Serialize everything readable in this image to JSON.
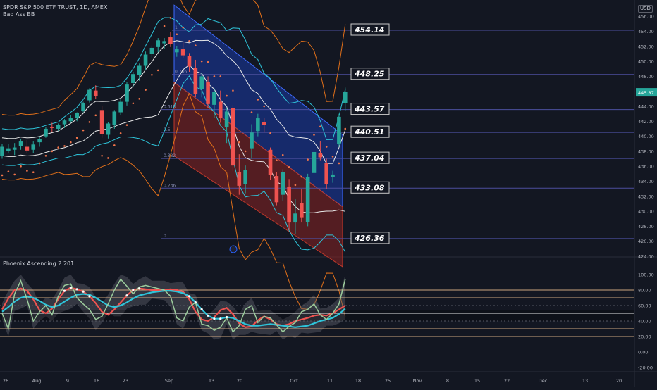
{
  "header": {
    "symbol_line": "SPDR S&P 500 ETF TRUST, 1D, AMEX",
    "indicator": "Bad Ass BB",
    "currency": "USD"
  },
  "oscillator": {
    "title": "Phoenix Ascending 2.201"
  },
  "colors": {
    "background": "#131722",
    "up": "#26a69a",
    "down": "#ef5350",
    "bb_outer": "#e1701a",
    "bb_mid": "#2ec4d9",
    "bb_basis": "#e8e8e8",
    "fib_line": "#4c4f9e",
    "psar": "#f0744a",
    "channel_upper": "#1a3aa8",
    "channel_lower": "#8b2323",
    "osc_band": "#5d606b",
    "osc_red": "#ef5350",
    "osc_cyan": "#2ec4d9",
    "osc_green": "#9ccc9c",
    "osc_level": "#e0b48a"
  },
  "chart_data": {
    "type": "candlestick",
    "title": "SPDR S&P 500 ETF TRUST, 1D, AMEX",
    "ylim": [
      424,
      456
    ],
    "y_ticks": [
      "424.00",
      "426.00",
      "428.00",
      "430.00",
      "432.00",
      "434.00",
      "436.00",
      "438.00",
      "440.00",
      "442.00",
      "444.00",
      "446.00",
      "448.00",
      "450.00",
      "452.00",
      "454.00",
      "456.00"
    ],
    "last_price": "445.87",
    "x_ticks": [
      "26",
      "Aug",
      "9",
      "16",
      "23",
      "Sep",
      "13",
      "20",
      "Oct",
      "11",
      "18",
      "25",
      "Nov",
      "8",
      "15",
      "22",
      "Dec",
      "13",
      "20"
    ],
    "candles": [
      [
        437.4,
        439.0,
        437.0,
        438.6
      ],
      [
        438.0,
        439.0,
        437.7,
        438.4
      ],
      [
        438.2,
        439.1,
        437.5,
        438.5
      ],
      [
        438.7,
        439.6,
        438.2,
        439.3
      ],
      [
        438.6,
        439.5,
        437.8,
        438.1
      ],
      [
        438.2,
        439.3,
        437.8,
        438.9
      ],
      [
        439.2,
        440.0,
        438.6,
        439.6
      ],
      [
        440.0,
        441.2,
        439.8,
        441.0
      ],
      [
        441.2,
        441.8,
        440.6,
        441.1
      ],
      [
        441.0,
        441.7,
        440.7,
        441.5
      ],
      [
        441.6,
        442.3,
        441.1,
        442.1
      ],
      [
        442.0,
        442.8,
        441.8,
        442.4
      ],
      [
        442.4,
        443.2,
        442.0,
        443.1
      ],
      [
        443.4,
        444.6,
        443.2,
        444.4
      ],
      [
        444.8,
        446.4,
        444.5,
        446.2
      ],
      [
        446.1,
        446.8,
        445.0,
        445.4
      ],
      [
        443.5,
        444.0,
        439.8,
        440.3
      ],
      [
        440.2,
        441.9,
        439.7,
        441.7
      ],
      [
        441.5,
        443.5,
        441.0,
        443.3
      ],
      [
        443.2,
        445.0,
        442.8,
        444.6
      ],
      [
        444.6,
        447.2,
        444.1,
        446.9
      ],
      [
        447.1,
        448.6,
        446.6,
        448.3
      ],
      [
        448.2,
        449.7,
        447.4,
        449.4
      ],
      [
        449.4,
        451.3,
        448.8,
        450.9
      ],
      [
        451.0,
        452.1,
        450.4,
        451.8
      ],
      [
        451.9,
        453.1,
        451.2,
        452.8
      ],
      [
        452.4,
        453.1,
        451.7,
        452.7
      ],
      [
        453.2,
        453.9,
        451.9,
        452.3
      ],
      [
        451.2,
        452.0,
        450.6,
        451.6
      ],
      [
        451.6,
        452.6,
        450.5,
        450.8
      ],
      [
        450.7,
        451.1,
        448.6,
        449.3
      ],
      [
        449.1,
        450.2,
        445.2,
        445.6
      ],
      [
        446.3,
        448.4,
        445.2,
        448.0
      ],
      [
        447.2,
        448.0,
        443.8,
        444.3
      ],
      [
        444.2,
        446.4,
        442.5,
        445.9
      ],
      [
        444.6,
        446.1,
        441.8,
        442.4
      ],
      [
        441.2,
        443.8,
        439.1,
        443.3
      ],
      [
        443.8,
        444.2,
        435.3,
        436.1
      ],
      [
        435.2,
        437.6,
        432.2,
        433.4
      ],
      [
        433.6,
        436.1,
        432.4,
        435.5
      ],
      [
        438.4,
        441.6,
        437.0,
        440.5
      ],
      [
        440.7,
        443.0,
        440.0,
        442.4
      ],
      [
        441.9,
        442.4,
        440.5,
        441.5
      ],
      [
        438.2,
        438.5,
        434.2,
        434.8
      ],
      [
        434.7,
        435.2,
        430.8,
        431.2
      ],
      [
        432.2,
        435.6,
        431.4,
        435.2
      ],
      [
        433.3,
        434.3,
        427.5,
        428.5
      ],
      [
        428.5,
        431.6,
        427.0,
        429.7
      ],
      [
        431.1,
        433.0,
        428.5,
        429.2
      ],
      [
        428.6,
        435.0,
        428.0,
        434.6
      ],
      [
        435.1,
        438.6,
        434.2,
        437.9
      ],
      [
        437.8,
        439.4,
        436.8,
        437.2
      ],
      [
        436.4,
        437.0,
        433.0,
        433.6
      ],
      [
        434.6,
        435.4,
        433.8,
        434.9
      ],
      [
        439.0,
        443.0,
        438.6,
        442.6
      ],
      [
        444.4,
        446.5,
        443.4,
        445.9
      ]
    ],
    "fib_levels": [
      {
        "ratio": "0",
        "value": 426.36
      },
      {
        "ratio": "0.236",
        "value": 433.08
      },
      {
        "ratio": "0.382",
        "value": 437.04
      },
      {
        "ratio": "0.5",
        "value": 440.51
      },
      {
        "ratio": "0.618",
        "value": 443.57
      },
      {
        "ratio": "0.786",
        "value": 448.25
      },
      {
        "ratio": "1",
        "value": 454.14
      }
    ],
    "oscillator": {
      "title": "Phoenix Ascending 2.201",
      "ylim": [
        -25,
        105
      ],
      "y_ticks": [
        "100.00",
        "80.00",
        "60.00",
        "40.00",
        "20.00",
        "0.00",
        "-20.00"
      ],
      "levels": [
        20,
        30,
        40,
        50,
        60,
        70,
        80
      ],
      "series": [
        {
          "values": [
            55,
            69,
            80,
            82,
            79,
            68,
            54,
            50,
            56,
            68,
            79,
            83,
            81,
            78,
            72,
            63,
            52,
            48,
            55,
            64,
            73,
            80,
            82,
            81,
            80,
            80,
            80,
            81,
            80,
            78,
            68,
            52,
            42,
            40,
            45,
            54,
            57,
            49,
            37,
            32,
            33,
            41,
            46,
            42,
            36,
            34,
            36,
            40,
            42,
            44,
            47,
            48,
            47,
            50,
            55,
            60
          ]
        },
        {
          "values": [
            52,
            58,
            65,
            70,
            72,
            70,
            66,
            61,
            58,
            60,
            65,
            70,
            74,
            75,
            74,
            70,
            65,
            60,
            58,
            60,
            64,
            69,
            73,
            75,
            77,
            78,
            79,
            79,
            78,
            76,
            72,
            64,
            55,
            47,
            43,
            43,
            45,
            44,
            40,
            36,
            34,
            34,
            35,
            36,
            35,
            34,
            33,
            32,
            33,
            34,
            37,
            40,
            42,
            44,
            49,
            56
          ]
        },
        {
          "values": [
            50,
            30,
            75,
            92,
            68,
            40,
            52,
            60,
            48,
            72,
            86,
            88,
            70,
            62,
            55,
            42,
            46,
            62,
            80,
            94,
            85,
            75,
            84,
            86,
            84,
            82,
            80,
            72,
            44,
            40,
            58,
            64,
            36,
            34,
            28,
            32,
            44,
            26,
            34,
            55,
            60,
            38,
            46,
            44,
            35,
            26,
            33,
            38,
            52,
            55,
            62,
            48,
            42,
            50,
            62,
            94
          ]
        }
      ],
      "markers": [
        {
          "series": 0,
          "indices": [
            10,
            11,
            12,
            13,
            14,
            20,
            21,
            22
          ]
        },
        {
          "series": 1,
          "indices": [
            30,
            31,
            32,
            33,
            34,
            35,
            36
          ]
        }
      ]
    }
  }
}
